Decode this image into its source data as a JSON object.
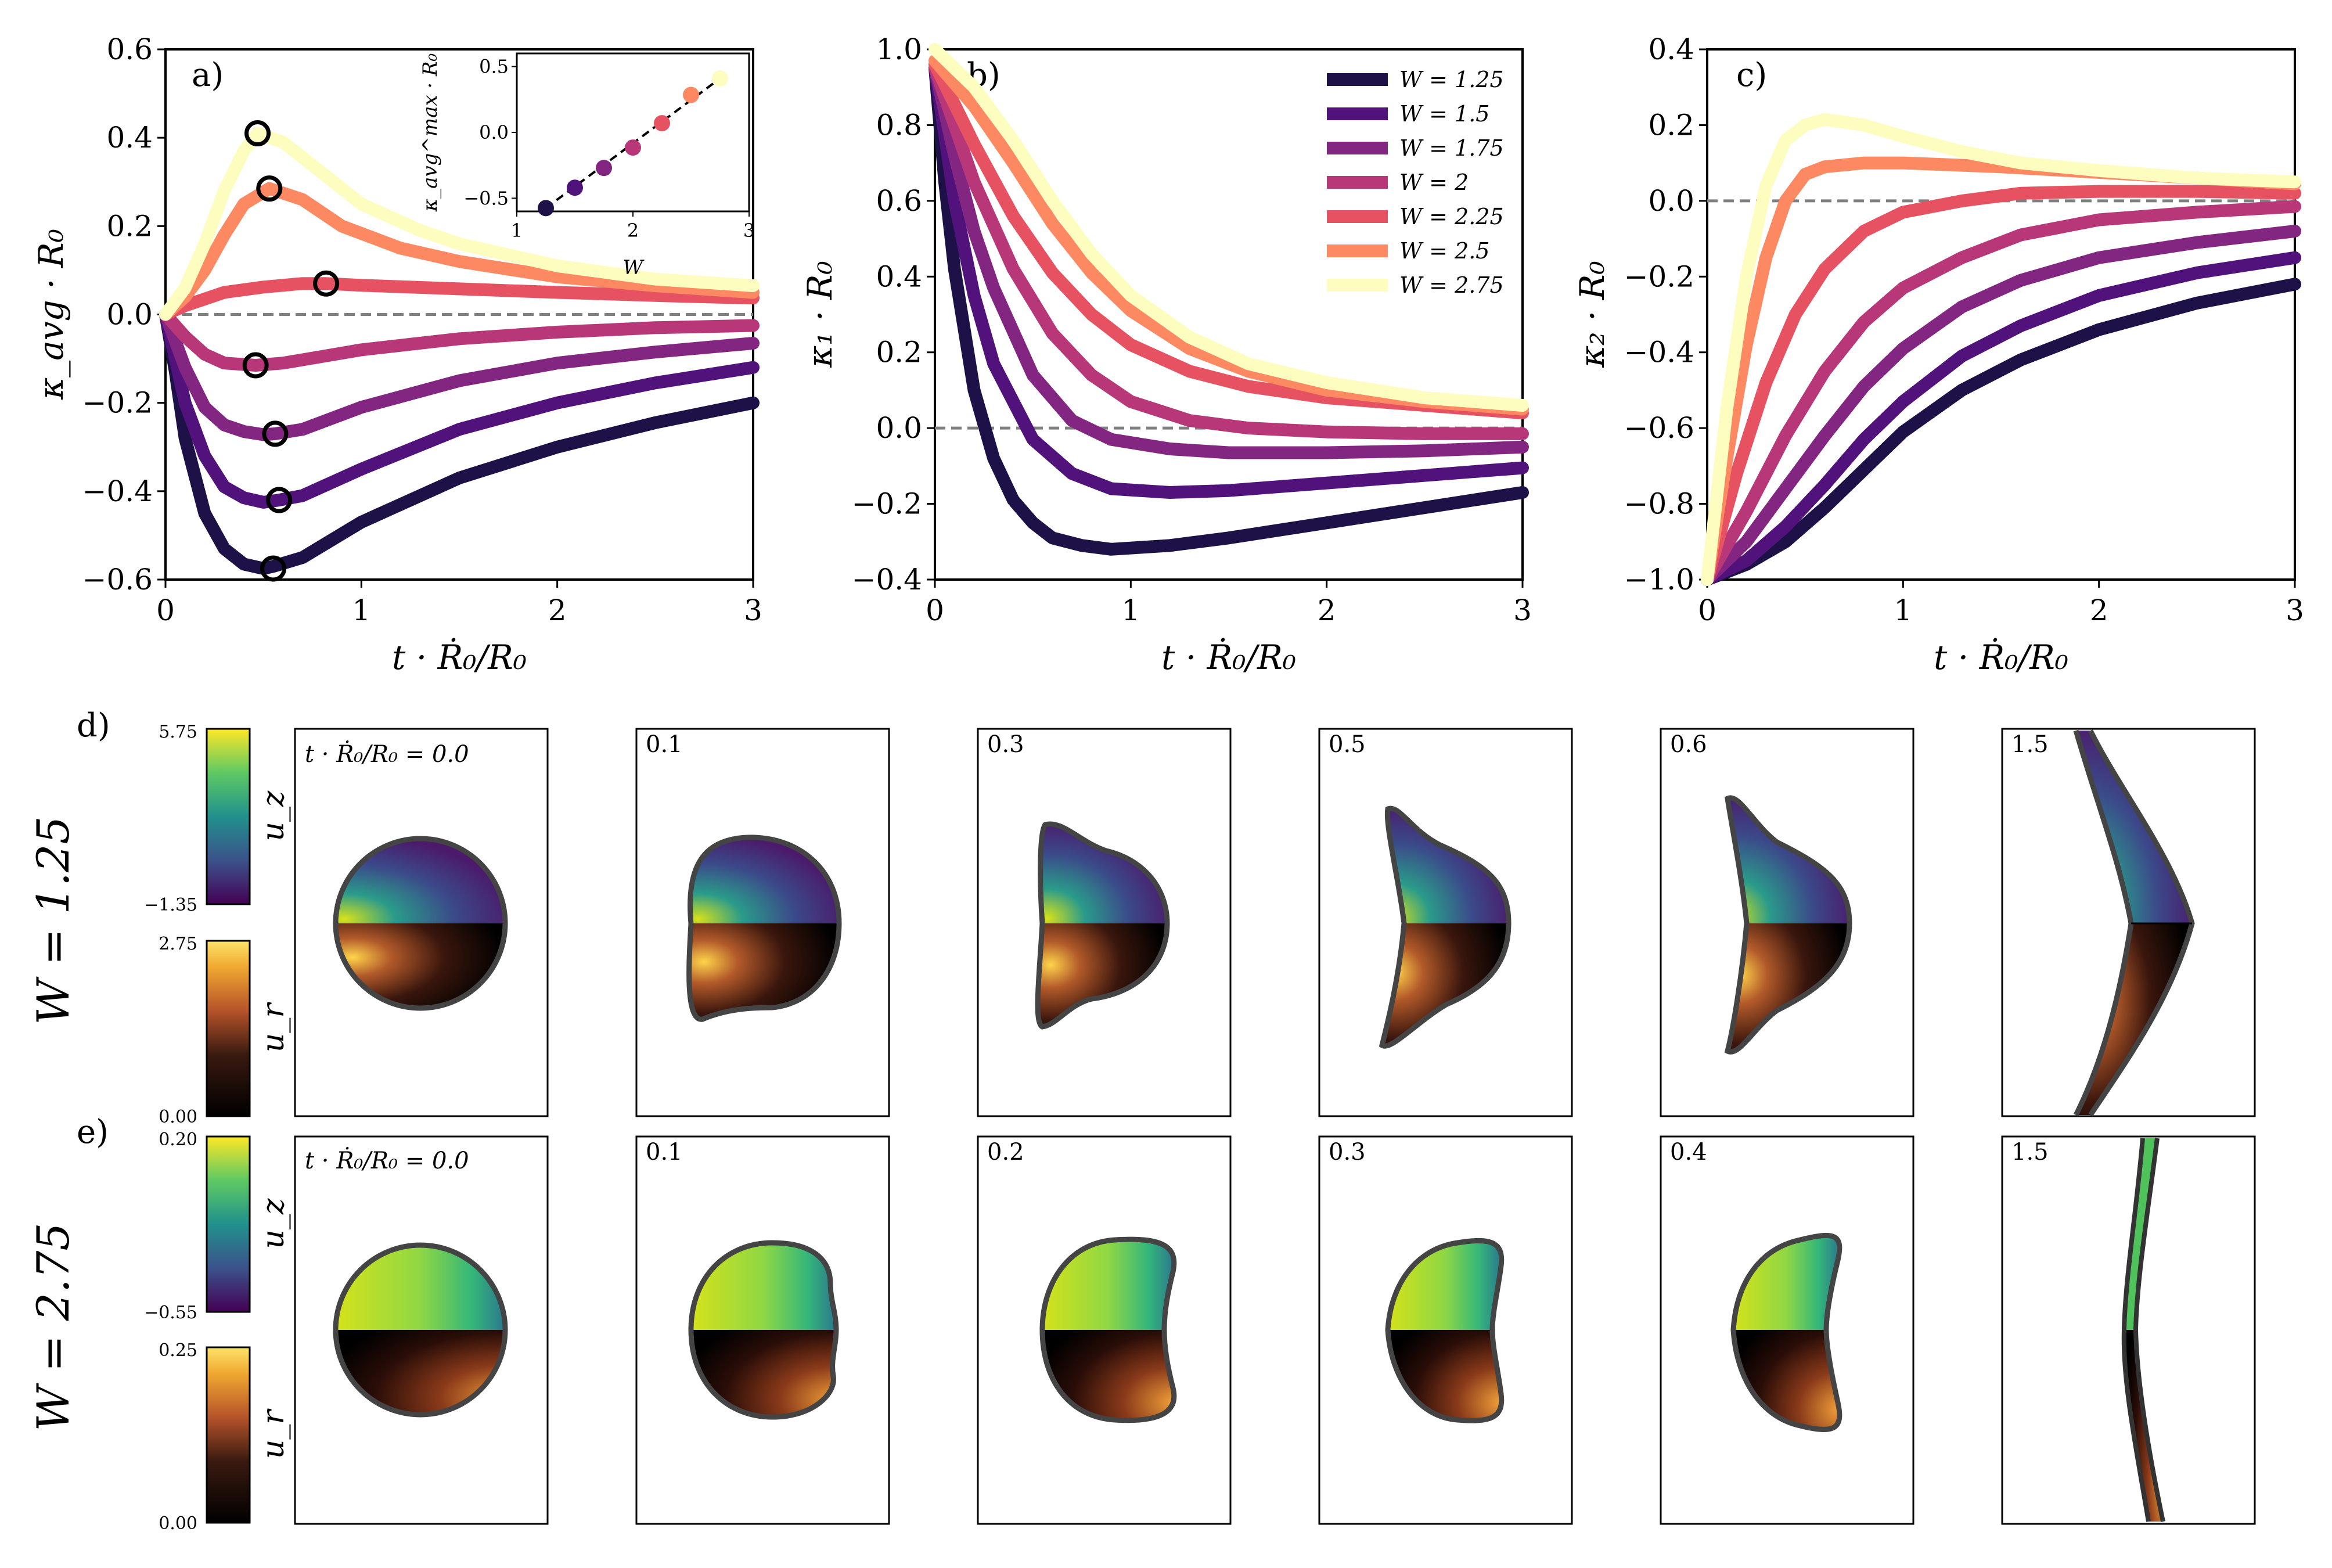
{
  "figure": {
    "panel_labels": [
      "a)",
      "b)",
      "c)",
      "d)",
      "e)"
    ],
    "x_label": "t · Ṙ₀/R₀",
    "line_colors": [
      "#1d1147",
      "#51127c",
      "#832681",
      "#b73779",
      "#e75263",
      "#fc8961",
      "#fcfdbf"
    ],
    "dashed_color": "#808080"
  },
  "chart_data": [
    {
      "id": "a",
      "type": "line",
      "title": "a)",
      "xlabel": "t · Ṙ₀/R₀",
      "ylabel": "κ_avg · R₀",
      "xlim": [
        0,
        3
      ],
      "ylim": [
        -0.6,
        0.6
      ],
      "xticks": [
        0,
        1,
        2,
        3
      ],
      "yticks": [
        -0.6,
        -0.4,
        -0.2,
        0.0,
        0.2,
        0.4,
        0.6
      ],
      "ytick_labels": [
        "−0.6",
        "−0.4",
        "−0.2",
        "0.0",
        "0.2",
        "0.4",
        "0.6"
      ],
      "reference_line_y": 0,
      "series": [
        {
          "name": "W = 1.25",
          "x": [
            0,
            0.05,
            0.1,
            0.2,
            0.3,
            0.4,
            0.5,
            0.55,
            0.7,
            1.0,
            1.5,
            2.0,
            2.5,
            3.0
          ],
          "values": [
            0,
            -0.13,
            -0.28,
            -0.45,
            -0.53,
            -0.565,
            -0.575,
            -0.57,
            -0.55,
            -0.47,
            -0.37,
            -0.3,
            -0.245,
            -0.2
          ]
        },
        {
          "name": "W = 1.5",
          "x": [
            0,
            0.05,
            0.1,
            0.2,
            0.3,
            0.4,
            0.5,
            0.58,
            0.7,
            1.0,
            1.5,
            2.0,
            2.5,
            3.0
          ],
          "values": [
            0,
            -0.1,
            -0.2,
            -0.32,
            -0.39,
            -0.415,
            -0.425,
            -0.42,
            -0.41,
            -0.35,
            -0.26,
            -0.2,
            -0.155,
            -0.12
          ]
        },
        {
          "name": "W = 1.75",
          "x": [
            0,
            0.1,
            0.2,
            0.3,
            0.4,
            0.5,
            0.56,
            0.7,
            1.0,
            1.5,
            2.0,
            2.5,
            3.0
          ],
          "values": [
            0,
            -0.12,
            -0.21,
            -0.25,
            -0.265,
            -0.272,
            -0.27,
            -0.26,
            -0.21,
            -0.15,
            -0.11,
            -0.085,
            -0.065
          ]
        },
        {
          "name": "W = 2",
          "x": [
            0,
            0.1,
            0.2,
            0.3,
            0.46,
            0.6,
            0.8,
            1.0,
            1.5,
            2.0,
            2.5,
            3.0
          ],
          "values": [
            0,
            -0.05,
            -0.09,
            -0.11,
            -0.115,
            -0.11,
            -0.095,
            -0.08,
            -0.055,
            -0.04,
            -0.03,
            -0.025
          ]
        },
        {
          "name": "W = 2.25",
          "x": [
            0,
            0.1,
            0.2,
            0.3,
            0.5,
            0.7,
            0.82,
            1.0,
            1.5,
            2.0,
            2.5,
            3.0
          ],
          "values": [
            0,
            0.02,
            0.035,
            0.05,
            0.062,
            0.07,
            0.07,
            0.066,
            0.058,
            0.05,
            0.043,
            0.037
          ]
        },
        {
          "name": "W = 2.5",
          "x": [
            0,
            0.1,
            0.2,
            0.3,
            0.4,
            0.53,
            0.7,
            0.9,
            1.2,
            1.5,
            2.0,
            2.5,
            3.0
          ],
          "values": [
            0,
            0.04,
            0.1,
            0.18,
            0.25,
            0.285,
            0.26,
            0.2,
            0.15,
            0.12,
            0.085,
            0.065,
            0.05
          ]
        },
        {
          "name": "W = 2.75",
          "x": [
            0,
            0.1,
            0.2,
            0.3,
            0.4,
            0.47,
            0.6,
            0.8,
            1.0,
            1.3,
            1.5,
            2.0,
            2.5,
            3.0
          ],
          "values": [
            0,
            0.06,
            0.16,
            0.28,
            0.37,
            0.41,
            0.39,
            0.32,
            0.25,
            0.19,
            0.16,
            0.11,
            0.08,
            0.065
          ]
        }
      ],
      "max_markers": [
        {
          "x": 0.55,
          "y": -0.575
        },
        {
          "x": 0.58,
          "y": -0.42
        },
        {
          "x": 0.56,
          "y": -0.27
        },
        {
          "x": 0.46,
          "y": -0.115
        },
        {
          "x": 0.82,
          "y": 0.07
        },
        {
          "x": 0.53,
          "y": 0.285
        },
        {
          "x": 0.47,
          "y": 0.41
        }
      ],
      "inset": {
        "type": "scatter",
        "xlabel": "W",
        "ylabel": "κ_avg^max · R₀",
        "xlim": [
          1,
          3
        ],
        "ylim": [
          -0.6,
          0.6
        ],
        "xticks": [
          1,
          2,
          3
        ],
        "yticks": [
          -0.5,
          0.0,
          0.5
        ],
        "ytick_labels": [
          "−0.5",
          "0.0",
          "0.5"
        ],
        "x": [
          1.25,
          1.5,
          1.75,
          2.0,
          2.25,
          2.5,
          2.75
        ],
        "values": [
          -0.575,
          -0.42,
          -0.27,
          -0.115,
          0.07,
          0.285,
          0.41
        ],
        "fit_line": {
          "x": [
            1.25,
            2.75
          ],
          "values": [
            -0.575,
            0.41
          ]
        }
      }
    },
    {
      "id": "b",
      "type": "line",
      "title": "b)",
      "xlabel": "t · Ṙ₀/R₀",
      "ylabel": "κ₁ · R₀",
      "xlim": [
        0,
        3
      ],
      "ylim": [
        -0.4,
        1.0
      ],
      "xticks": [
        0,
        1,
        2,
        3
      ],
      "yticks": [
        -0.4,
        -0.2,
        0.0,
        0.2,
        0.4,
        0.6,
        0.8,
        1.0
      ],
      "ytick_labels": [
        "−0.4",
        "−0.2",
        "0.0",
        "0.2",
        "0.4",
        "0.6",
        "0.8",
        "1.0"
      ],
      "reference_line_y": 0,
      "legend_position": "top-right",
      "series": [
        {
          "name": "W = 1.25",
          "x": [
            0,
            0.05,
            0.1,
            0.2,
            0.3,
            0.4,
            0.5,
            0.6,
            0.75,
            0.9,
            1.2,
            1.5,
            2.0,
            2.5,
            3.0
          ],
          "values": [
            0.95,
            0.65,
            0.42,
            0.1,
            -0.08,
            -0.19,
            -0.25,
            -0.29,
            -0.31,
            -0.32,
            -0.31,
            -0.29,
            -0.25,
            -0.21,
            -0.17
          ]
        },
        {
          "name": "W = 1.5",
          "x": [
            0,
            0.1,
            0.2,
            0.3,
            0.5,
            0.7,
            0.9,
            1.2,
            1.5,
            2.0,
            2.5,
            3.0
          ],
          "values": [
            0.95,
            0.6,
            0.35,
            0.17,
            -0.03,
            -0.12,
            -0.16,
            -0.17,
            -0.165,
            -0.145,
            -0.125,
            -0.105
          ]
        },
        {
          "name": "W = 1.75",
          "x": [
            0,
            0.1,
            0.2,
            0.3,
            0.5,
            0.7,
            0.9,
            1.2,
            1.5,
            2.0,
            2.5,
            3.0
          ],
          "values": [
            0.95,
            0.72,
            0.52,
            0.37,
            0.14,
            0.02,
            -0.03,
            -0.055,
            -0.065,
            -0.065,
            -0.06,
            -0.05
          ]
        },
        {
          "name": "W = 2",
          "x": [
            0,
            0.1,
            0.2,
            0.4,
            0.6,
            0.8,
            1.0,
            1.3,
            1.6,
            2.0,
            2.5,
            3.0
          ],
          "values": [
            0.95,
            0.8,
            0.65,
            0.42,
            0.25,
            0.14,
            0.07,
            0.02,
            0.0,
            -0.01,
            -0.015,
            -0.015
          ]
        },
        {
          "name": "W = 2.25",
          "x": [
            0,
            0.2,
            0.4,
            0.6,
            0.8,
            1.0,
            1.3,
            1.6,
            2.0,
            2.5,
            3.0
          ],
          "values": [
            0.96,
            0.75,
            0.56,
            0.41,
            0.3,
            0.22,
            0.15,
            0.11,
            0.08,
            0.06,
            0.04
          ]
        },
        {
          "name": "W = 2.5",
          "x": [
            0,
            0.2,
            0.4,
            0.6,
            0.8,
            1.0,
            1.3,
            1.6,
            2.0,
            2.5,
            3.0
          ],
          "values": [
            0.97,
            0.85,
            0.7,
            0.54,
            0.41,
            0.31,
            0.21,
            0.15,
            0.1,
            0.07,
            0.05
          ]
        },
        {
          "name": "W = 2.75",
          "x": [
            0,
            0.2,
            0.4,
            0.6,
            0.8,
            1.0,
            1.3,
            1.6,
            2.0,
            2.5,
            3.0
          ],
          "values": [
            1.0,
            0.9,
            0.76,
            0.6,
            0.46,
            0.35,
            0.24,
            0.17,
            0.12,
            0.08,
            0.06
          ]
        }
      ]
    },
    {
      "id": "c",
      "type": "line",
      "title": "c)",
      "xlabel": "t · Ṙ₀/R₀",
      "ylabel": "κ₂ · R₀",
      "xlim": [
        0,
        3
      ],
      "ylim": [
        -1.0,
        0.4
      ],
      "xticks": [
        0,
        1,
        2,
        3
      ],
      "yticks": [
        -1.0,
        -0.8,
        -0.6,
        -0.4,
        -0.2,
        0.0,
        0.2,
        0.4
      ],
      "ytick_labels": [
        "−1.0",
        "−0.8",
        "−0.6",
        "−0.4",
        "−0.2",
        "0.0",
        "0.2",
        "0.4"
      ],
      "reference_line_y": 0,
      "series": [
        {
          "name": "W = 1.25",
          "x": [
            0,
            0.2,
            0.4,
            0.6,
            0.8,
            1.0,
            1.3,
            1.6,
            2.0,
            2.5,
            3.0
          ],
          "values": [
            -1.0,
            -0.96,
            -0.9,
            -0.81,
            -0.71,
            -0.61,
            -0.5,
            -0.42,
            -0.34,
            -0.27,
            -0.22
          ]
        },
        {
          "name": "W = 1.5",
          "x": [
            0,
            0.2,
            0.4,
            0.6,
            0.8,
            1.0,
            1.3,
            1.6,
            2.0,
            2.5,
            3.0
          ],
          "values": [
            -1.0,
            -0.95,
            -0.86,
            -0.75,
            -0.63,
            -0.53,
            -0.41,
            -0.33,
            -0.25,
            -0.19,
            -0.15
          ]
        },
        {
          "name": "W = 1.75",
          "x": [
            0,
            0.2,
            0.4,
            0.6,
            0.8,
            1.0,
            1.3,
            1.6,
            2.0,
            2.5,
            3.0
          ],
          "values": [
            -1.0,
            -0.9,
            -0.76,
            -0.62,
            -0.49,
            -0.39,
            -0.28,
            -0.21,
            -0.15,
            -0.11,
            -0.08
          ]
        },
        {
          "name": "W = 2",
          "x": [
            0,
            0.2,
            0.4,
            0.6,
            0.8,
            1.0,
            1.3,
            1.6,
            2.0,
            2.5,
            3.0
          ],
          "values": [
            -1.0,
            -0.82,
            -0.62,
            -0.45,
            -0.32,
            -0.23,
            -0.15,
            -0.09,
            -0.05,
            -0.03,
            -0.015
          ]
        },
        {
          "name": "W = 2.25",
          "x": [
            0,
            0.15,
            0.3,
            0.45,
            0.6,
            0.8,
            1.0,
            1.3,
            1.6,
            2.0,
            2.5,
            3.0
          ],
          "values": [
            -1.0,
            -0.72,
            -0.48,
            -0.3,
            -0.18,
            -0.08,
            -0.03,
            0.0,
            0.02,
            0.025,
            0.025,
            0.02
          ]
        },
        {
          "name": "W = 2.5",
          "x": [
            0,
            0.1,
            0.2,
            0.3,
            0.4,
            0.5,
            0.6,
            0.8,
            1.0,
            1.5,
            2.0,
            2.5,
            3.0
          ],
          "values": [
            -1.0,
            -0.68,
            -0.38,
            -0.15,
            0.0,
            0.07,
            0.09,
            0.1,
            0.1,
            0.09,
            0.075,
            0.06,
            0.045
          ]
        },
        {
          "name": "W = 2.75",
          "x": [
            0,
            0.1,
            0.2,
            0.3,
            0.4,
            0.5,
            0.6,
            0.8,
            1.0,
            1.3,
            1.6,
            2.0,
            2.5,
            3.0
          ],
          "values": [
            -1.0,
            -0.55,
            -0.2,
            0.04,
            0.16,
            0.2,
            0.215,
            0.2,
            0.17,
            0.13,
            0.1,
            0.08,
            0.06,
            0.05
          ]
        }
      ]
    }
  ],
  "snapshots": {
    "row_d": {
      "label": "d)",
      "w_label": "W = 1.25",
      "colorbar_uz": {
        "name": "u_z",
        "max": "5.75",
        "min": "−1.35"
      },
      "colorbar_ur": {
        "name": "u_r",
        "max": "2.75",
        "min": "0.00"
      },
      "times": [
        "t · Ṙ₀/R₀ = 0.0",
        "0.1",
        "0.3",
        "0.5",
        "0.6",
        "1.5"
      ]
    },
    "row_e": {
      "label": "e)",
      "w_label": "W = 2.75",
      "colorbar_uz": {
        "name": "u_z",
        "max": "0.20",
        "min": "−0.55"
      },
      "colorbar_ur": {
        "name": "u_r",
        "max": "0.25",
        "min": "0.00"
      },
      "times": [
        "t · Ṙ₀/R₀ = 0.0",
        "0.1",
        "0.2",
        "0.3",
        "0.4",
        "1.5"
      ]
    }
  }
}
